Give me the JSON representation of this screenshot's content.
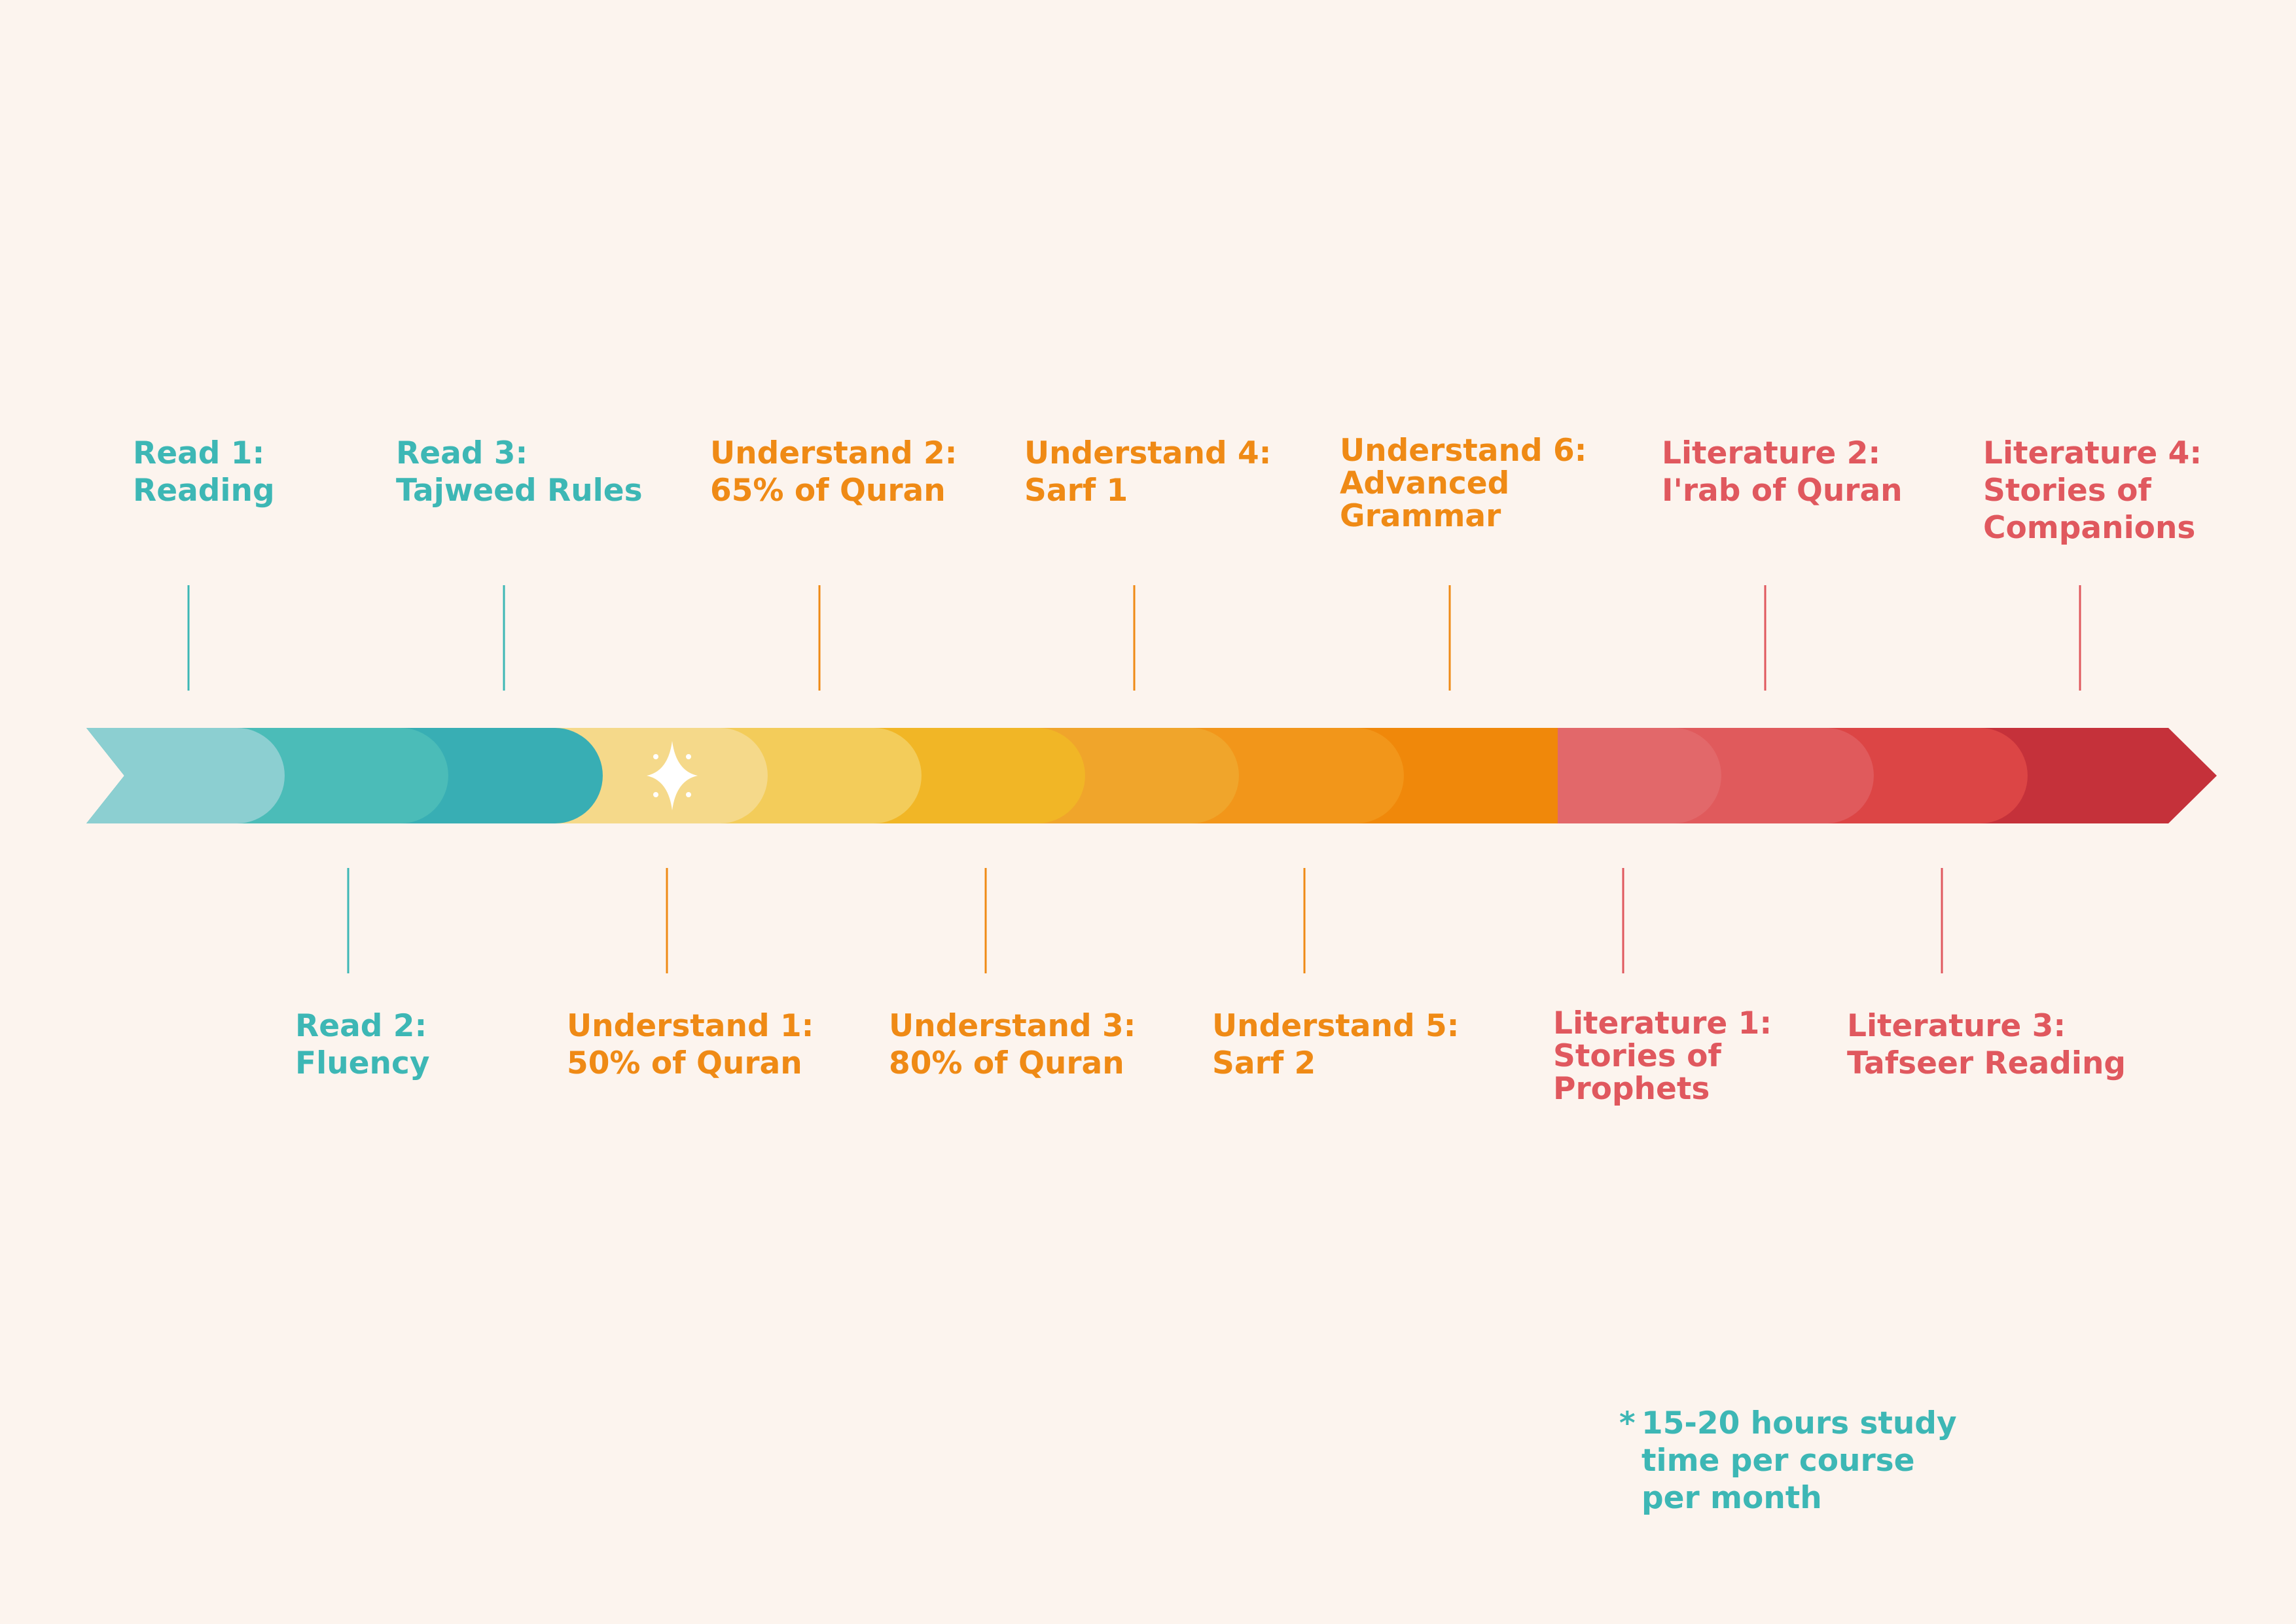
{
  "milestones_top": [
    {
      "title": "Read 1:",
      "subtitle": "Reading",
      "color": "teal"
    },
    {
      "title": "Read 3:",
      "subtitle": "Tajweed Rules",
      "color": "teal"
    },
    {
      "title": "Understand 2:",
      "subtitle": "65% of Quran",
      "color": "orange"
    },
    {
      "title": "Understand 4:",
      "subtitle": "Sarf 1",
      "color": "orange"
    },
    {
      "title": "Understand 6:",
      "subtitle": "Advanced",
      "subtitle2": "Grammar",
      "color": "orange"
    },
    {
      "title": "Literature 2:",
      "subtitle": "I'rab of Quran",
      "color": "red"
    },
    {
      "title": "Literature 4:",
      "subtitle": "Stories of",
      "subtitle2": "Companions",
      "color": "red"
    }
  ],
  "milestones_bottom": [
    {
      "title": "Read 2:",
      "subtitle": "Fluency",
      "color": "teal"
    },
    {
      "title": "Understand 1:",
      "subtitle": "50% of Quran",
      "color": "orange"
    },
    {
      "title": "Understand 3:",
      "subtitle": "80% of Quran",
      "color": "orange"
    },
    {
      "title": "Understand 5:",
      "subtitle": "Sarf 2",
      "color": "orange"
    },
    {
      "title": "Literature 1:",
      "subtitle": "Stories of",
      "subtitle2": "Prophets",
      "color": "red"
    },
    {
      "title": "Literature 3:",
      "subtitle": "Tafseer Reading",
      "color": "red"
    }
  ],
  "footnote": {
    "star": "*",
    "line1": "15-20 hours study",
    "line2": "time per course",
    "line3": "per month"
  },
  "colors": {
    "background": "#fcf4ee",
    "teal_text": "#3db7b5",
    "orange_text": "#ef8a15",
    "red_text": "#e0585e",
    "segments": [
      "#8ccfd1",
      "#4bbcb8",
      "#38aeb4",
      "#f5d98a",
      "#f3cc5a",
      "#f1b626",
      "#f0a52b",
      "#f2961a",
      "#f0880a",
      "#e2686a",
      "#e05a5c",
      "#dc4545",
      "#c5313a"
    ]
  },
  "icons": {
    "sparkle": "sparkle-icon"
  }
}
